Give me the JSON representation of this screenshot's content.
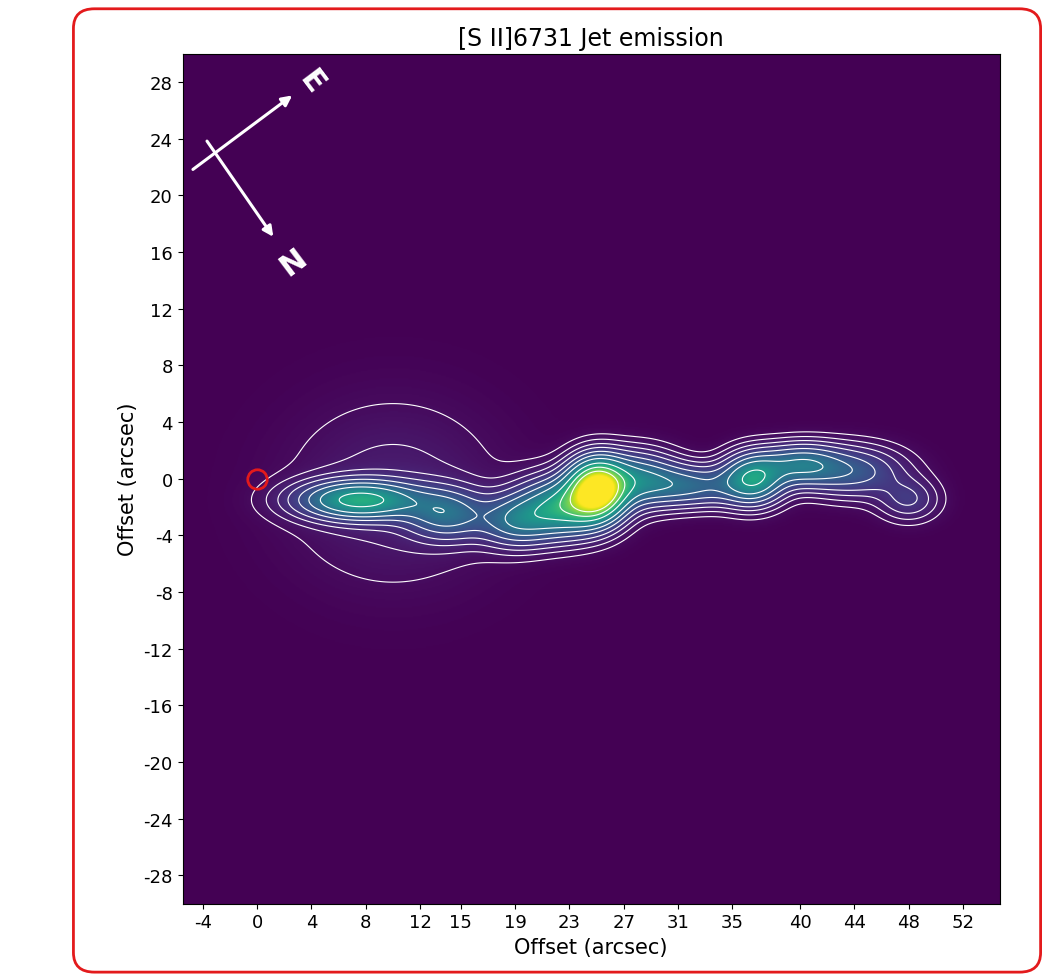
{
  "chart_data": {
    "type": "image",
    "title": "[S II]6731 Jet emission",
    "x_label": "Offset (arcsec)",
    "y_label": "Offset (arcsec)",
    "xlim": [
      -5.5,
      54.7
    ],
    "ylim": [
      -30,
      30
    ],
    "xticks": [
      -4,
      0,
      4,
      8,
      12,
      15,
      19,
      23,
      27,
      31,
      35,
      40,
      44,
      48,
      52
    ],
    "yticks": [
      -28,
      -24,
      -20,
      -16,
      -12,
      -8,
      -4,
      0,
      4,
      8,
      12,
      16,
      20,
      24,
      28
    ],
    "compass": {
      "east": "E",
      "north": "N"
    },
    "source": {
      "x": 0,
      "y": 0,
      "color": "#e31a1c"
    },
    "color_range": [
      0,
      1
    ],
    "contour_levels": [
      0.03,
      0.06,
      0.1,
      0.15,
      0.22,
      0.3,
      0.4,
      0.55,
      0.7,
      0.85
    ],
    "knots": [
      {
        "x": 10,
        "y": -1,
        "peak": 0.08,
        "x_width": 5.5,
        "y_width": 4.5
      },
      {
        "x": 7.5,
        "y": -1.5,
        "peak": 0.55,
        "x_width": 3.0,
        "y_width": 0.9
      },
      {
        "x": 14,
        "y": -2.5,
        "peak": 0.3,
        "x_width": 2.0,
        "y_width": 1.2
      },
      {
        "x": 19,
        "y": -3,
        "peak": 0.3,
        "x_width": 1.8,
        "y_width": 1.2
      },
      {
        "x": 22.5,
        "y": -2,
        "peak": 0.55,
        "x_width": 2.2,
        "y_width": 1.4
      },
      {
        "x": 25,
        "y": -0.7,
        "peak": 1.0,
        "x_width": 1.4,
        "y_width": 1.4
      },
      {
        "x": 28,
        "y": 0,
        "peak": 0.35,
        "x_width": 2.0,
        "y_width": 1.3
      },
      {
        "x": 32,
        "y": -0.5,
        "peak": 0.3,
        "x_width": 2.5,
        "y_width": 1.0
      },
      {
        "x": 36.5,
        "y": 0,
        "peak": 0.5,
        "x_width": 1.5,
        "y_width": 1.2
      },
      {
        "x": 40,
        "y": 1,
        "peak": 0.35,
        "x_width": 2.0,
        "y_width": 1.0
      },
      {
        "x": 44,
        "y": 0.5,
        "peak": 0.25,
        "x_width": 2.5,
        "y_width": 1.2
      },
      {
        "x": 48,
        "y": -1.5,
        "peak": 0.15,
        "x_width": 1.5,
        "y_width": 1.0
      }
    ]
  }
}
